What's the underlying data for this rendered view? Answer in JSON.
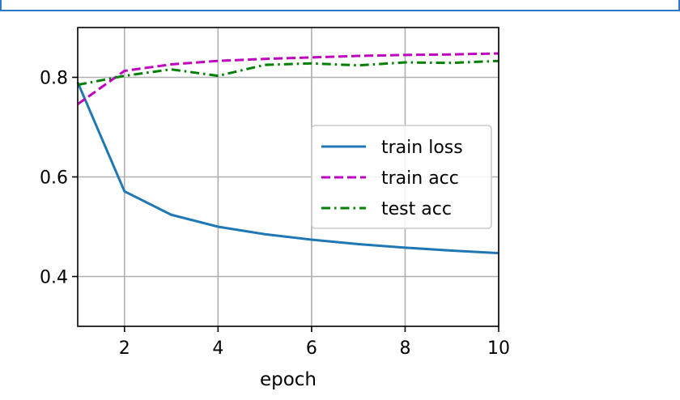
{
  "chart_data": {
    "type": "line",
    "xlabel": "epoch",
    "ylabel": "",
    "xlim": [
      1,
      10
    ],
    "ylim": [
      0.3,
      0.9
    ],
    "xticks": [
      2,
      4,
      6,
      8,
      10
    ],
    "yticks": [
      0.4,
      0.6,
      0.8
    ],
    "x_tick_labels": [
      "2",
      "4",
      "6",
      "8",
      "10"
    ],
    "y_tick_labels": [
      "0.4",
      "0.6",
      "0.8"
    ],
    "grid": true,
    "legend_placement": "center-right",
    "x": [
      1,
      2,
      3,
      4,
      5,
      6,
      7,
      8,
      9,
      10
    ],
    "series": [
      {
        "name": "train loss",
        "color": "#1f77b4",
        "style": "solid",
        "values": [
          0.79,
          0.571,
          0.524,
          0.5,
          0.485,
          0.474,
          0.465,
          0.458,
          0.452,
          0.447
        ]
      },
      {
        "name": "train acc",
        "color": "#bf00bf",
        "style": "dashed",
        "values": [
          0.746,
          0.813,
          0.826,
          0.833,
          0.837,
          0.84,
          0.843,
          0.845,
          0.846,
          0.848
        ]
      },
      {
        "name": "test acc",
        "color": "#008000",
        "style": "dashdot",
        "values": [
          0.785,
          0.803,
          0.816,
          0.803,
          0.825,
          0.828,
          0.824,
          0.83,
          0.829,
          0.833
        ]
      }
    ]
  }
}
